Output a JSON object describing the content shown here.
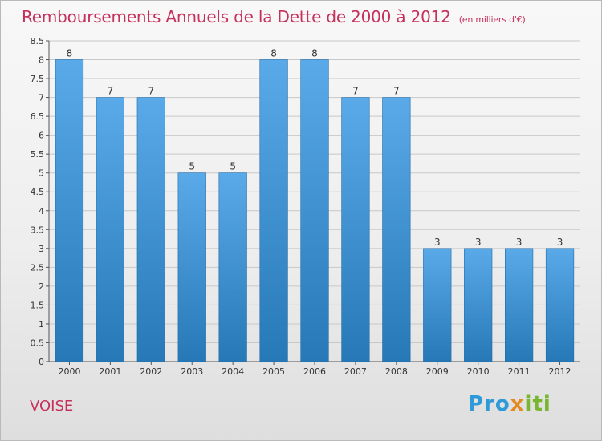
{
  "header": {
    "title": "Remboursements Annuels de la Dette de 2000 à 2012",
    "unit": "(en milliers d'€)"
  },
  "footer": {
    "commune": "VOISE",
    "logo": {
      "p1": "Pro",
      "p2": "x",
      "p3": "iti"
    }
  },
  "colors": {
    "bar_light": "#5aaaea",
    "bar_dark": "#2778b7",
    "title": "#c6305c",
    "grid": "#c8c8c8"
  },
  "chart_data": {
    "type": "bar",
    "categories": [
      "2000",
      "2001",
      "2002",
      "2003",
      "2004",
      "2005",
      "2006",
      "2007",
      "2008",
      "2009",
      "2010",
      "2011",
      "2012"
    ],
    "values": [
      8,
      7,
      7,
      5,
      5,
      8,
      8,
      7,
      7,
      3,
      3,
      3,
      3
    ],
    "data_labels": [
      "8",
      "7",
      "7",
      "5",
      "5",
      "8",
      "8",
      "7",
      "7",
      "3",
      "3",
      "3",
      "3"
    ],
    "title": "Remboursements Annuels de la Dette de 2000 à 2012",
    "xlabel": "",
    "ylabel": "",
    "ylim": [
      0,
      8.5
    ],
    "yticks": [
      "0",
      "0.5",
      "1",
      "1.5",
      "2",
      "2.5",
      "3",
      "3.5",
      "4",
      "4.5",
      "5",
      "5.5",
      "6",
      "6.5",
      "7",
      "7.5",
      "8",
      "8.5"
    ],
    "grid": true
  }
}
